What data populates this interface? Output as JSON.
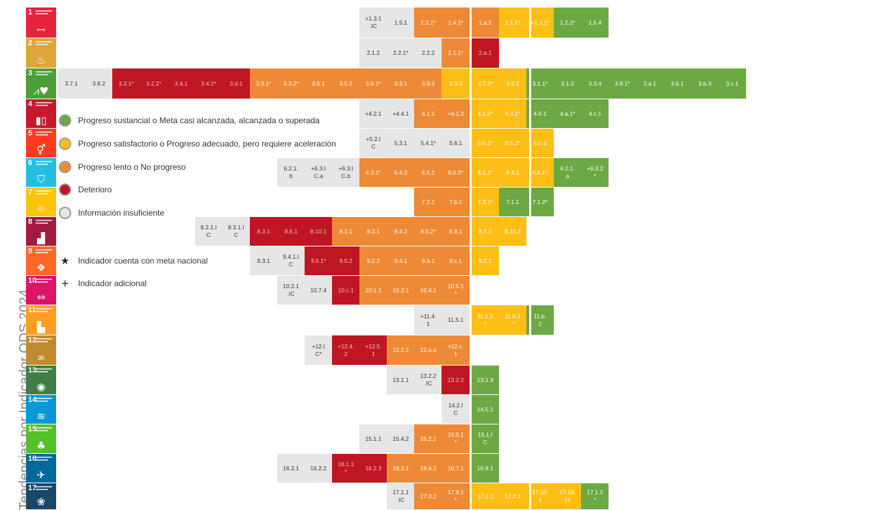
{
  "title": "Tendencias por Indicador ODS 2024",
  "colors": {
    "green": "#6ca844",
    "yellow": "#fdbe16",
    "orange": "#ee8a35",
    "red": "#be1622",
    "gray": "#e6e6e6"
  },
  "goals": [
    {
      "num": "1",
      "color": "#e5243b",
      "icon": "family-people-icon",
      "sym": "ꟷ"
    },
    {
      "num": "2",
      "color": "#dda63a",
      "icon": "food-bowl-icon",
      "sym": "♨"
    },
    {
      "num": "3",
      "color": "#4c9f38",
      "icon": "heartbeat-icon",
      "sym": "⩘♥"
    },
    {
      "num": "4",
      "color": "#c5192d",
      "icon": "open-book-icon",
      "sym": "▮▯"
    },
    {
      "num": "5",
      "color": "#ff3a21",
      "icon": "gender-equality-icon",
      "sym": "⚥"
    },
    {
      "num": "6",
      "color": "#26bde2",
      "icon": "water-glass-icon",
      "sym": "⛉"
    },
    {
      "num": "7",
      "color": "#fcc30b",
      "icon": "sun-energy-icon",
      "sym": "☼"
    },
    {
      "num": "8",
      "color": "#a21942",
      "icon": "growth-chart-icon",
      "sym": "▟"
    },
    {
      "num": "9",
      "color": "#fd6925",
      "icon": "cubes-icon",
      "sym": "❖"
    },
    {
      "num": "10",
      "color": "#dd1367",
      "icon": "equal-arrows-icon",
      "sym": "⇔"
    },
    {
      "num": "11",
      "color": "#fd9d24",
      "icon": "city-buildings-icon",
      "sym": "▙"
    },
    {
      "num": "12",
      "color": "#bf8b2e",
      "icon": "infinity-icon",
      "sym": "∞"
    },
    {
      "num": "13",
      "color": "#3f7e44",
      "icon": "eye-globe-icon",
      "sym": "◉"
    },
    {
      "num": "14",
      "color": "#0a97d9",
      "icon": "fish-waves-icon",
      "sym": "≋"
    },
    {
      "num": "15",
      "color": "#56c02b",
      "icon": "tree-icon",
      "sym": "♣"
    },
    {
      "num": "16",
      "color": "#00689d",
      "icon": "dove-gavel-icon",
      "sym": "✈"
    },
    {
      "num": "17",
      "color": "#19486a",
      "icon": "partnership-flower-icon",
      "sym": "❀"
    }
  ],
  "legend": [
    {
      "status": "green",
      "text": "Progreso sustancial o Meta casi alcanzada, alcanzada o superada"
    },
    {
      "status": "yellow",
      "text": "Progreso satisfactorio o Progreso adecuado, pero requiere aceleración"
    },
    {
      "status": "orange",
      "text": "Progreso lento o No progreso"
    },
    {
      "status": "red",
      "text": "Deterioro"
    },
    {
      "status": "gray",
      "text": "Información insuficiente"
    },
    {
      "symbol": "★",
      "text": "Indicador cuenta con meta nacional"
    },
    {
      "symbol": "+",
      "text": "Indicador adicional"
    }
  ],
  "rows": [
    {
      "goal": "1",
      "cells": [
        {
          "col": 18,
          "label": "+1.3.1\n.IC",
          "status": "gray"
        },
        {
          "col": 19,
          "label": "1.5.1",
          "status": "gray"
        },
        {
          "col": 20,
          "label": "1.2.1*",
          "status": "orange"
        },
        {
          "col": 21,
          "label": "1.4.1*",
          "status": "orange"
        },
        {
          "col": 22,
          "label": "1.a.2",
          "status": "orange"
        },
        {
          "col": 23,
          "label": "1.1.1*",
          "status": "yellow"
        },
        {
          "col": 24,
          "label": "+1.3.1*",
          "status": "yellow"
        },
        {
          "col": 25,
          "label": "1.2.2*",
          "status": "green"
        },
        {
          "col": 26,
          "label": "1.5.4",
          "status": "green"
        }
      ]
    },
    {
      "goal": "2",
      "cells": [
        {
          "col": 18,
          "label": "2.1.2",
          "status": "gray"
        },
        {
          "col": 19,
          "label": "2.2.1*",
          "status": "gray"
        },
        {
          "col": 20,
          "label": "2.2.2",
          "status": "gray"
        },
        {
          "col": 21,
          "label": "2.1.1*",
          "status": "orange"
        },
        {
          "col": 22,
          "label": "2.a.1",
          "status": "red"
        }
      ]
    },
    {
      "goal": "3",
      "cells": [
        {
          "col": 7,
          "label": "3.7.1",
          "status": "gray"
        },
        {
          "col": 8,
          "label": "3.8.2",
          "status": "gray"
        },
        {
          "col": 9,
          "label": "3.2.1*",
          "status": "red"
        },
        {
          "col": 10,
          "label": "3.2.2*",
          "status": "red"
        },
        {
          "col": 11,
          "label": "3.4.1",
          "status": "red"
        },
        {
          "col": 12,
          "label": "3.4.2*",
          "status": "red"
        },
        {
          "col": 13,
          "label": "3.d.1",
          "status": "red"
        },
        {
          "col": 14,
          "label": "3.3.1*",
          "status": "orange"
        },
        {
          "col": 15,
          "label": "3.3.2*",
          "status": "orange"
        },
        {
          "col": 16,
          "label": "3.5.1",
          "status": "orange"
        },
        {
          "col": 17,
          "label": "3.5.2",
          "status": "orange"
        },
        {
          "col": 18,
          "label": "3.6.1*",
          "status": "orange"
        },
        {
          "col": 19,
          "label": "3.9.1",
          "status": "orange"
        },
        {
          "col": 20,
          "label": "3.9.3",
          "status": "orange"
        },
        {
          "col": 21,
          "label": "3.3.3",
          "status": "yellow"
        },
        {
          "col": 22,
          "label": "3.7.2*",
          "status": "yellow"
        },
        {
          "col": 23,
          "label": "3.9.2",
          "status": "yellow"
        },
        {
          "col": 24,
          "label": "3.1.1*",
          "status": "green"
        },
        {
          "col": 25,
          "label": "3.1.2",
          "status": "green"
        },
        {
          "col": 26,
          "label": "3.3.4",
          "status": "green"
        },
        {
          "col": 27,
          "label": "3.8.1*",
          "status": "green"
        },
        {
          "col": 28,
          "label": "3.a.1",
          "status": "green"
        },
        {
          "col": 29,
          "label": "3.b.1",
          "status": "green"
        },
        {
          "col": 30,
          "label": "3.b.3",
          "status": "green"
        },
        {
          "col": 31,
          "label": "3.c.1",
          "status": "green"
        }
      ]
    },
    {
      "goal": "4",
      "cells": [
        {
          "col": 18,
          "label": "+4.2.1",
          "status": "gray"
        },
        {
          "col": 19,
          "label": "+4.4.1",
          "status": "gray"
        },
        {
          "col": 20,
          "label": "4.1.1",
          "status": "orange"
        },
        {
          "col": 21,
          "label": "+4.1.2",
          "status": "orange"
        },
        {
          "col": 22,
          "label": "4.2.2*",
          "status": "yellow"
        },
        {
          "col": 23,
          "label": "4.3.1*",
          "status": "yellow"
        },
        {
          "col": 24,
          "label": "4.6.1",
          "status": "green"
        },
        {
          "col": 25,
          "label": "4.a.1*",
          "status": "green"
        },
        {
          "col": 26,
          "label": "4.c.1",
          "status": "green"
        }
      ]
    },
    {
      "goal": "5",
      "cells": [
        {
          "col": 18,
          "label": "+5.2.I\nC",
          "status": "gray"
        },
        {
          "col": 19,
          "label": "5.3.1",
          "status": "gray"
        },
        {
          "col": 20,
          "label": "5.4.1*",
          "status": "gray"
        },
        {
          "col": 21,
          "label": "5.6.1",
          "status": "gray"
        },
        {
          "col": 22,
          "label": "5.5.1*",
          "status": "yellow"
        },
        {
          "col": 23,
          "label": "5.5.2*",
          "status": "yellow"
        },
        {
          "col": 24,
          "label": "5.b.1",
          "status": "yellow"
        }
      ]
    },
    {
      "goal": "6",
      "cells": [
        {
          "col": 15,
          "label": "6.2.1.\nb",
          "status": "gray"
        },
        {
          "col": 16,
          "label": "+6.3.I\nC.a",
          "status": "gray"
        },
        {
          "col": 17,
          "label": "+6.3.I\nC.b",
          "status": "gray"
        },
        {
          "col": 18,
          "label": "6.3.1*",
          "status": "orange"
        },
        {
          "col": 19,
          "label": "6.4.2",
          "status": "orange"
        },
        {
          "col": 20,
          "label": "6.5.1",
          "status": "orange"
        },
        {
          "col": 21,
          "label": "6.5.2*",
          "status": "orange"
        },
        {
          "col": 22,
          "label": "6.1.1*",
          "status": "yellow"
        },
        {
          "col": 23,
          "label": "6.4.1",
          "status": "yellow"
        },
        {
          "col": 24,
          "label": "6.b.1*",
          "status": "yellow"
        },
        {
          "col": 25,
          "label": "6.2.1.\na",
          "status": "green"
        },
        {
          "col": 26,
          "label": "+6.3.2\n*",
          "status": "green"
        }
      ]
    },
    {
      "goal": "7",
      "cells": [
        {
          "col": 20,
          "label": "7.2.1",
          "status": "orange"
        },
        {
          "col": 21,
          "label": "7.b.1",
          "status": "orange"
        },
        {
          "col": 22,
          "label": "7.3.1*",
          "status": "yellow"
        },
        {
          "col": 23,
          "label": "7.1.1",
          "status": "green"
        },
        {
          "col": 24,
          "label": "7.1.2*",
          "status": "green"
        }
      ]
    },
    {
      "goal": "8",
      "cells": [
        {
          "col": 12,
          "label": "8.2.1.I\nC",
          "status": "gray"
        },
        {
          "col": 13,
          "label": "8.3.1.I\nC",
          "status": "gray"
        },
        {
          "col": 14,
          "label": "8.3.1",
          "status": "red"
        },
        {
          "col": 15,
          "label": "8.6.1",
          "status": "red"
        },
        {
          "col": 16,
          "label": "8.10.1",
          "status": "red"
        },
        {
          "col": 17,
          "label": "8.1.1",
          "status": "orange"
        },
        {
          "col": 18,
          "label": "8.2.1",
          "status": "orange"
        },
        {
          "col": 19,
          "label": "8.4.2",
          "status": "orange"
        },
        {
          "col": 20,
          "label": "8.5.2*",
          "status": "orange"
        },
        {
          "col": 21,
          "label": "8.9.1",
          "status": "orange"
        },
        {
          "col": 22,
          "label": "8.7.1",
          "status": "yellow"
        },
        {
          "col": 23,
          "label": "8.10.2",
          "status": "yellow"
        }
      ]
    },
    {
      "goal": "9",
      "cells": [
        {
          "col": 14,
          "label": "9.3.1",
          "status": "gray"
        },
        {
          "col": 15,
          "label": "9.4.1.I\nC",
          "status": "gray"
        },
        {
          "col": 16,
          "label": "9.5.1*",
          "status": "red"
        },
        {
          "col": 17,
          "label": "9.5.2",
          "status": "red"
        },
        {
          "col": 18,
          "label": "9.2.2",
          "status": "orange"
        },
        {
          "col": 19,
          "label": "9.4.1",
          "status": "orange"
        },
        {
          "col": 20,
          "label": "9.b.1",
          "status": "orange"
        },
        {
          "col": 21,
          "label": "9.c.1",
          "status": "orange"
        },
        {
          "col": 22,
          "label": "9.2.1",
          "status": "yellow"
        }
      ]
    },
    {
      "goal": "10",
      "cells": [
        {
          "col": 15,
          "label": "10.2.1\n.IC",
          "status": "gray"
        },
        {
          "col": 16,
          "label": "10.7.4",
          "status": "gray"
        },
        {
          "col": 17,
          "label": "10.c.1",
          "status": "red"
        },
        {
          "col": 18,
          "label": "10.1.1",
          "status": "orange"
        },
        {
          "col": 19,
          "label": "10.2.1",
          "status": "orange"
        },
        {
          "col": 20,
          "label": "10.4.1",
          "status": "orange"
        },
        {
          "col": 21,
          "label": "10.5.1\n*",
          "status": "orange"
        }
      ]
    },
    {
      "goal": "11",
      "cells": [
        {
          "col": 20,
          "label": "+11.4.\n1",
          "status": "gray"
        },
        {
          "col": 21,
          "label": "11.5.1",
          "status": "gray"
        },
        {
          "col": 22,
          "label": "11.1.1\n*",
          "status": "yellow"
        },
        {
          "col": 23,
          "label": "11.6.1\n*",
          "status": "yellow"
        },
        {
          "col": 24,
          "label": "11.b.\n2",
          "status": "green"
        }
      ]
    },
    {
      "goal": "12",
      "cells": [
        {
          "col": 16,
          "label": "+12.I\nC*",
          "status": "gray"
        },
        {
          "col": 17,
          "label": "+12.4.\n2",
          "status": "red"
        },
        {
          "col": 18,
          "label": "+12.5.\n1",
          "status": "red"
        },
        {
          "col": 19,
          "label": "12.2.2",
          "status": "orange"
        },
        {
          "col": 20,
          "label": "12.a.a",
          "status": "orange"
        },
        {
          "col": 21,
          "label": "+12.c.\n1",
          "status": "orange"
        }
      ]
    },
    {
      "goal": "13",
      "cells": [
        {
          "col": 19,
          "label": "13.1.1",
          "status": "gray"
        },
        {
          "col": 20,
          "label": "13.2.2\n.IC",
          "status": "gray"
        },
        {
          "col": 21,
          "label": "13.2.2",
          "status": "red"
        },
        {
          "col": 22,
          "label": "13.1.3",
          "status": "green"
        }
      ]
    },
    {
      "goal": "14",
      "cells": [
        {
          "col": 21,
          "label": "14.2.I\nC",
          "status": "gray"
        },
        {
          "col": 22,
          "label": "14.5.1",
          "status": "green"
        }
      ]
    },
    {
      "goal": "15",
      "cells": [
        {
          "col": 18,
          "label": "15.1.1",
          "status": "gray"
        },
        {
          "col": 19,
          "label": "15.4.2",
          "status": "gray"
        },
        {
          "col": 20,
          "label": "15.2.1",
          "status": "orange"
        },
        {
          "col": 21,
          "label": "15.5.1\n*",
          "status": "orange"
        },
        {
          "col": 22,
          "label": "15.1.I\nC",
          "status": "green"
        }
      ]
    },
    {
      "goal": "16",
      "cells": [
        {
          "col": 15,
          "label": "16.2.1",
          "status": "gray"
        },
        {
          "col": 16,
          "label": "16.2.2",
          "status": "gray"
        },
        {
          "col": 17,
          "label": "16.1.1\n*",
          "status": "red"
        },
        {
          "col": 18,
          "label": "16.2.3",
          "status": "red"
        },
        {
          "col": 19,
          "label": "16.3.1",
          "status": "orange"
        },
        {
          "col": 20,
          "label": "16.4.2",
          "status": "orange"
        },
        {
          "col": 21,
          "label": "16.7.1",
          "status": "orange"
        },
        {
          "col": 22,
          "label": "16.9.1",
          "status": "green"
        }
      ]
    },
    {
      "goal": "17",
      "cells": [
        {
          "col": 19,
          "label": "17.1.1\n.IC",
          "status": "gray"
        },
        {
          "col": 20,
          "label": "17.3.2",
          "status": "orange"
        },
        {
          "col": 21,
          "label": "17.8.1\n*",
          "status": "orange"
        },
        {
          "col": 22,
          "label": "17.1.1",
          "status": "yellow"
        },
        {
          "col": 23,
          "label": "17.4.1",
          "status": "yellow"
        },
        {
          "col": 24,
          "label": "17.10.\n1",
          "status": "yellow"
        },
        {
          "col": 25,
          "label": "17.18.\n11",
          "status": "yellow"
        },
        {
          "col": 26,
          "label": "17.1.2\n*",
          "status": "green"
        }
      ]
    }
  ]
}
